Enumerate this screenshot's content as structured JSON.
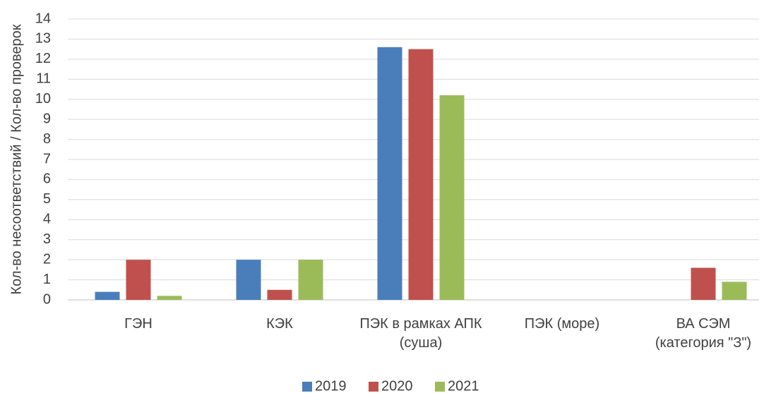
{
  "chart_data": {
    "type": "bar",
    "y_label": "Кол-во несоответствий / Кол-во проверок",
    "categories": [
      "ГЭН",
      "КЭК",
      "ПЭК в рамках АПК\n(суша)",
      "ПЭК (море)",
      "ВА СЭМ\n(категория \"З\")"
    ],
    "series": [
      {
        "name": "2019",
        "color": "#4a7ebb",
        "values": [
          0.4,
          2.0,
          12.6,
          0,
          0
        ]
      },
      {
        "name": "2020",
        "color": "#c0504d",
        "values": [
          2.0,
          0.5,
          12.5,
          0,
          1.6
        ]
      },
      {
        "name": "2021",
        "color": "#9bbb59",
        "values": [
          0.2,
          2.0,
          10.2,
          0,
          0.9
        ]
      }
    ],
    "ylim": [
      0,
      14
    ],
    "yticks": [
      0,
      1,
      2,
      3,
      4,
      5,
      6,
      7,
      8,
      9,
      10,
      11,
      12,
      13,
      14
    ],
    "grid": true,
    "legend": "bottom"
  }
}
